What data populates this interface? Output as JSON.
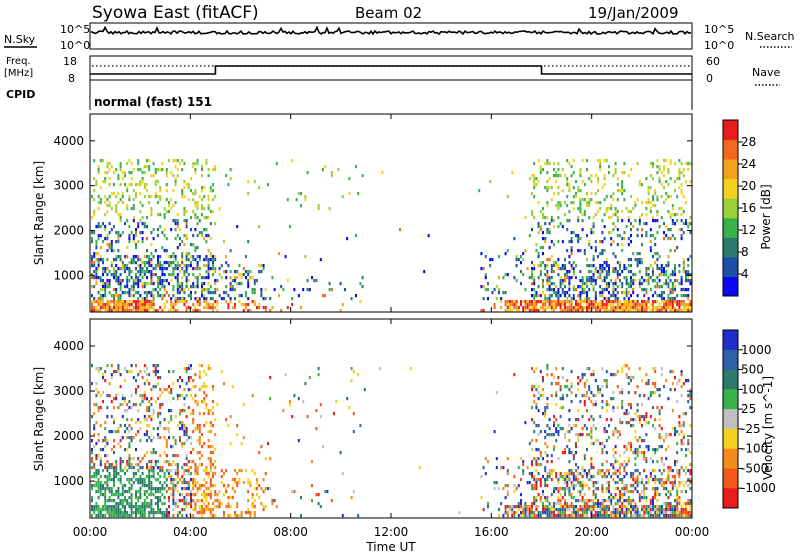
{
  "header": {
    "station": "Syowa East (fitACF)",
    "beam": "Beam 02",
    "date": "19/Jan/2009"
  },
  "noise_panel": {
    "left_label": "N.Sky",
    "right_label": "N.Search",
    "y_ticks_left": [
      "10^5",
      "10^0"
    ],
    "y_ticks_right": [
      "10^5",
      "10^0"
    ]
  },
  "freq_panel": {
    "left_label_line1": "Freq.",
    "left_label_line2": "[MHz]",
    "cpid_label": "CPID",
    "right_label": "Nave",
    "y_ticks_left": [
      "18",
      "8"
    ],
    "y_ticks_right": [
      "60",
      "0"
    ],
    "cpid_text": "normal (fast) 151"
  },
  "time_axis": {
    "label": "Time UT",
    "ticks": [
      "00:00",
      "04:00",
      "08:00",
      "12:00",
      "16:00",
      "20:00",
      "00:00"
    ]
  },
  "chart_data": [
    {
      "type": "heatmap",
      "name": "power",
      "ylabel": "Slant Range [km]",
      "xlabel": "Time UT",
      "xlim_hours": [
        0,
        24
      ],
      "ylim_km": [
        180,
        4600
      ],
      "y_ticks": [
        1000,
        2000,
        3000,
        4000
      ],
      "colorbar": {
        "label": "Power [dB]",
        "ticks": [
          4,
          8,
          12,
          16,
          20,
          24,
          28
        ],
        "colors": [
          "#0a0af0",
          "#1c4fa6",
          "#2f7a6e",
          "#39b14c",
          "#9ad13a",
          "#f2d21c",
          "#f2a21c",
          "#f2681c",
          "#e81c1c"
        ]
      }
    },
    {
      "type": "heatmap",
      "name": "velocity",
      "ylabel": "Slant Range [km]",
      "xlabel": "Time UT",
      "xlim_hours": [
        0,
        24
      ],
      "ylim_km": [
        180,
        4600
      ],
      "y_ticks": [
        1000,
        2000,
        3000,
        4000
      ],
      "colorbar": {
        "label": "Velocity [m s^-1]",
        "ticks": [
          "1000",
          "500",
          "100",
          "25",
          "-25",
          "-100",
          "-500",
          "-1000"
        ],
        "colors": [
          "#1c2fc8",
          "#2f5fa6",
          "#2f7a6e",
          "#39b14c",
          "#c0c0c0",
          "#f2d21c",
          "#f28a1c",
          "#f2581c",
          "#e81c1c"
        ]
      }
    }
  ]
}
